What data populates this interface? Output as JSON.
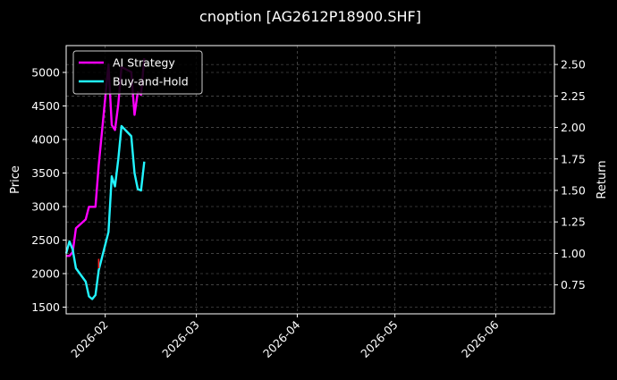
{
  "chart_data": {
    "type": "line",
    "title": "cnoption [AG2612P18900.SHF]",
    "ylabel": "Price",
    "y2label": "Return",
    "x_range": [
      "2026-01-20",
      "2026-06-19"
    ],
    "ylim": [
      1400,
      5400
    ],
    "y2lim": [
      0.52,
      2.65
    ],
    "yticks": [
      1500,
      2000,
      2500,
      3000,
      3500,
      4000,
      4500,
      5000
    ],
    "y2ticks": [
      0.75,
      1.0,
      1.25,
      1.5,
      1.75,
      2.0,
      2.25,
      2.5
    ],
    "y2tick_labels": [
      "0.75",
      "1.00",
      "1.25",
      "1.50",
      "1.75",
      "2.00",
      "2.25",
      "2.50"
    ],
    "xticks": [
      "2026-02-01",
      "2026-03-01",
      "2026-04-01",
      "2026-05-01",
      "2026-06-01"
    ],
    "xtick_labels": [
      "2026-02",
      "2026-03",
      "2026-04",
      "2026-05",
      "2026-06"
    ],
    "grid": true,
    "legend_position": "upper-left",
    "background_color": "#000000",
    "text_color": "#ffffff",
    "series": [
      {
        "name": "AI Strategy",
        "axis": "right",
        "color": "#ff00ff",
        "points": [
          [
            "2026-01-20",
            0.98
          ],
          [
            "2026-01-21",
            0.98
          ],
          [
            "2026-01-22",
            1.01
          ],
          [
            "2026-01-23",
            1.2
          ],
          [
            "2026-01-26",
            1.27
          ],
          [
            "2026-01-27",
            1.37
          ],
          [
            "2026-01-28",
            1.37
          ],
          [
            "2026-01-29",
            1.37
          ],
          [
            "2026-01-30",
            1.7
          ],
          [
            "2026-02-02",
            2.5
          ],
          [
            "2026-02-03",
            2.02
          ],
          [
            "2026-02-04",
            1.98
          ],
          [
            "2026-02-05",
            2.18
          ],
          [
            "2026-02-06",
            2.48
          ],
          [
            "2026-02-09",
            2.44
          ],
          [
            "2026-02-10",
            2.1
          ],
          [
            "2026-02-11",
            2.28
          ],
          [
            "2026-02-12",
            2.26
          ],
          [
            "2026-02-13",
            2.55
          ]
        ]
      },
      {
        "name": "Buy-and-Hold",
        "axis": "left",
        "color": "#22f5ff",
        "points": [
          [
            "2026-01-20",
            2300
          ],
          [
            "2026-01-21",
            2480
          ],
          [
            "2026-01-22",
            2360
          ],
          [
            "2026-01-23",
            2080
          ],
          [
            "2026-01-26",
            1880
          ],
          [
            "2026-01-27",
            1660
          ],
          [
            "2026-01-28",
            1620
          ],
          [
            "2026-01-29",
            1680
          ],
          [
            "2026-01-30",
            2050
          ],
          [
            "2026-02-02",
            2620
          ],
          [
            "2026-02-03",
            3450
          ],
          [
            "2026-02-04",
            3300
          ],
          [
            "2026-02-05",
            3700
          ],
          [
            "2026-02-06",
            4200
          ],
          [
            "2026-02-09",
            4050
          ],
          [
            "2026-02-10",
            3500
          ],
          [
            "2026-02-11",
            3260
          ],
          [
            "2026-02-12",
            3240
          ],
          [
            "2026-02-13",
            3670
          ]
        ]
      }
    ],
    "extra_marks": [
      {
        "color": "#ff2222",
        "axis": "left",
        "points": [
          [
            "2026-01-30",
            2080
          ],
          [
            "2026-01-30",
            2220
          ]
        ]
      }
    ]
  }
}
